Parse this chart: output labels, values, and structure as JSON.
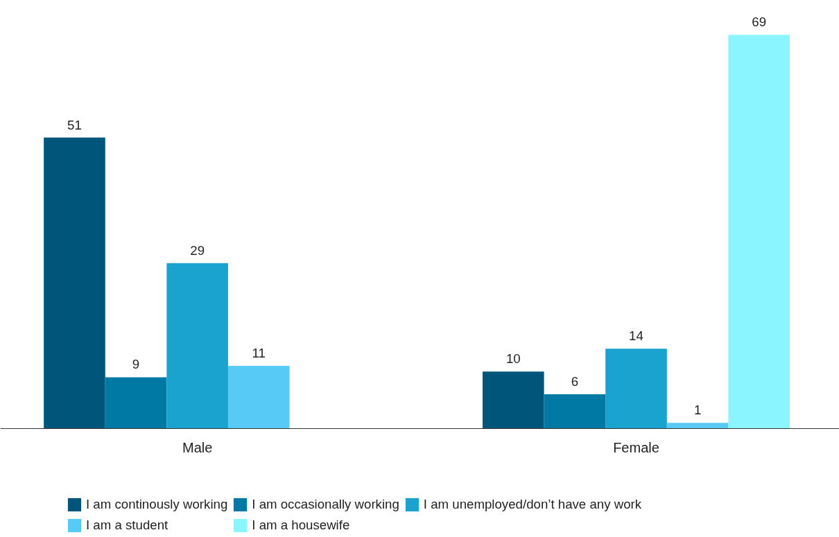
{
  "chart_data": {
    "type": "bar",
    "categories": [
      "Male",
      "Female"
    ],
    "series": [
      {
        "name": "I am continously working",
        "color": "#00557a",
        "values": [
          51,
          10
        ]
      },
      {
        "name": "I am occasionally working",
        "color": "#0079a5",
        "values": [
          9,
          6
        ]
      },
      {
        "name": "I am unemployed/don’t have any work",
        "color": "#1aa3cf",
        "values": [
          29,
          14
        ]
      },
      {
        "name": "I am a student",
        "color": "#57cbf5",
        "values": [
          11,
          1
        ]
      },
      {
        "name": "I am a housewife",
        "color": "#8af5ff",
        "values": [
          null,
          69
        ]
      }
    ],
    "data_labels": true,
    "legend": "bottom",
    "grid": false
  }
}
